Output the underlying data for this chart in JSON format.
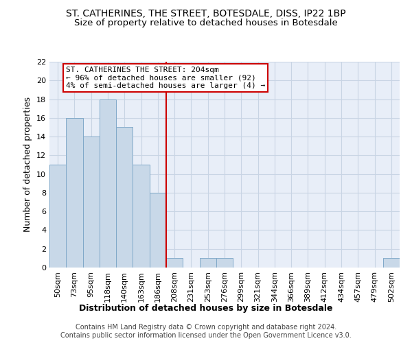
{
  "title": "ST. CATHERINES, THE STREET, BOTESDALE, DISS, IP22 1BP",
  "subtitle": "Size of property relative to detached houses in Botesdale",
  "xlabel": "Distribution of detached houses by size in Botesdale",
  "ylabel": "Number of detached properties",
  "bar_values": [
    11,
    16,
    14,
    18,
    15,
    11,
    8,
    1,
    0,
    1,
    1,
    0,
    0,
    0,
    0,
    0,
    0,
    0,
    0,
    0,
    1
  ],
  "bar_labels": [
    "50sqm",
    "73sqm",
    "95sqm",
    "118sqm",
    "140sqm",
    "163sqm",
    "186sqm",
    "208sqm",
    "231sqm",
    "253sqm",
    "276sqm",
    "299sqm",
    "321sqm",
    "344sqm",
    "366sqm",
    "389sqm",
    "412sqm",
    "434sqm",
    "457sqm",
    "479sqm",
    "502sqm"
  ],
  "bar_color": "#c8d8e8",
  "bar_edge_color": "#7fa8c8",
  "vline_color": "#cc0000",
  "annotation_text": "ST. CATHERINES THE STREET: 204sqm\n← 96% of detached houses are smaller (92)\n4% of semi-detached houses are larger (4) →",
  "annotation_box_color": "#cc0000",
  "ylim": [
    0,
    22
  ],
  "yticks": [
    0,
    2,
    4,
    6,
    8,
    10,
    12,
    14,
    16,
    18,
    20,
    22
  ],
  "grid_color": "#c8d4e4",
  "background_color": "#e8eef8",
  "footer_text": "Contains HM Land Registry data © Crown copyright and database right 2024.\nContains public sector information licensed under the Open Government Licence v3.0.",
  "title_fontsize": 10,
  "subtitle_fontsize": 9.5,
  "axis_label_fontsize": 9,
  "tick_fontsize": 8,
  "annotation_fontsize": 8,
  "footer_fontsize": 7
}
